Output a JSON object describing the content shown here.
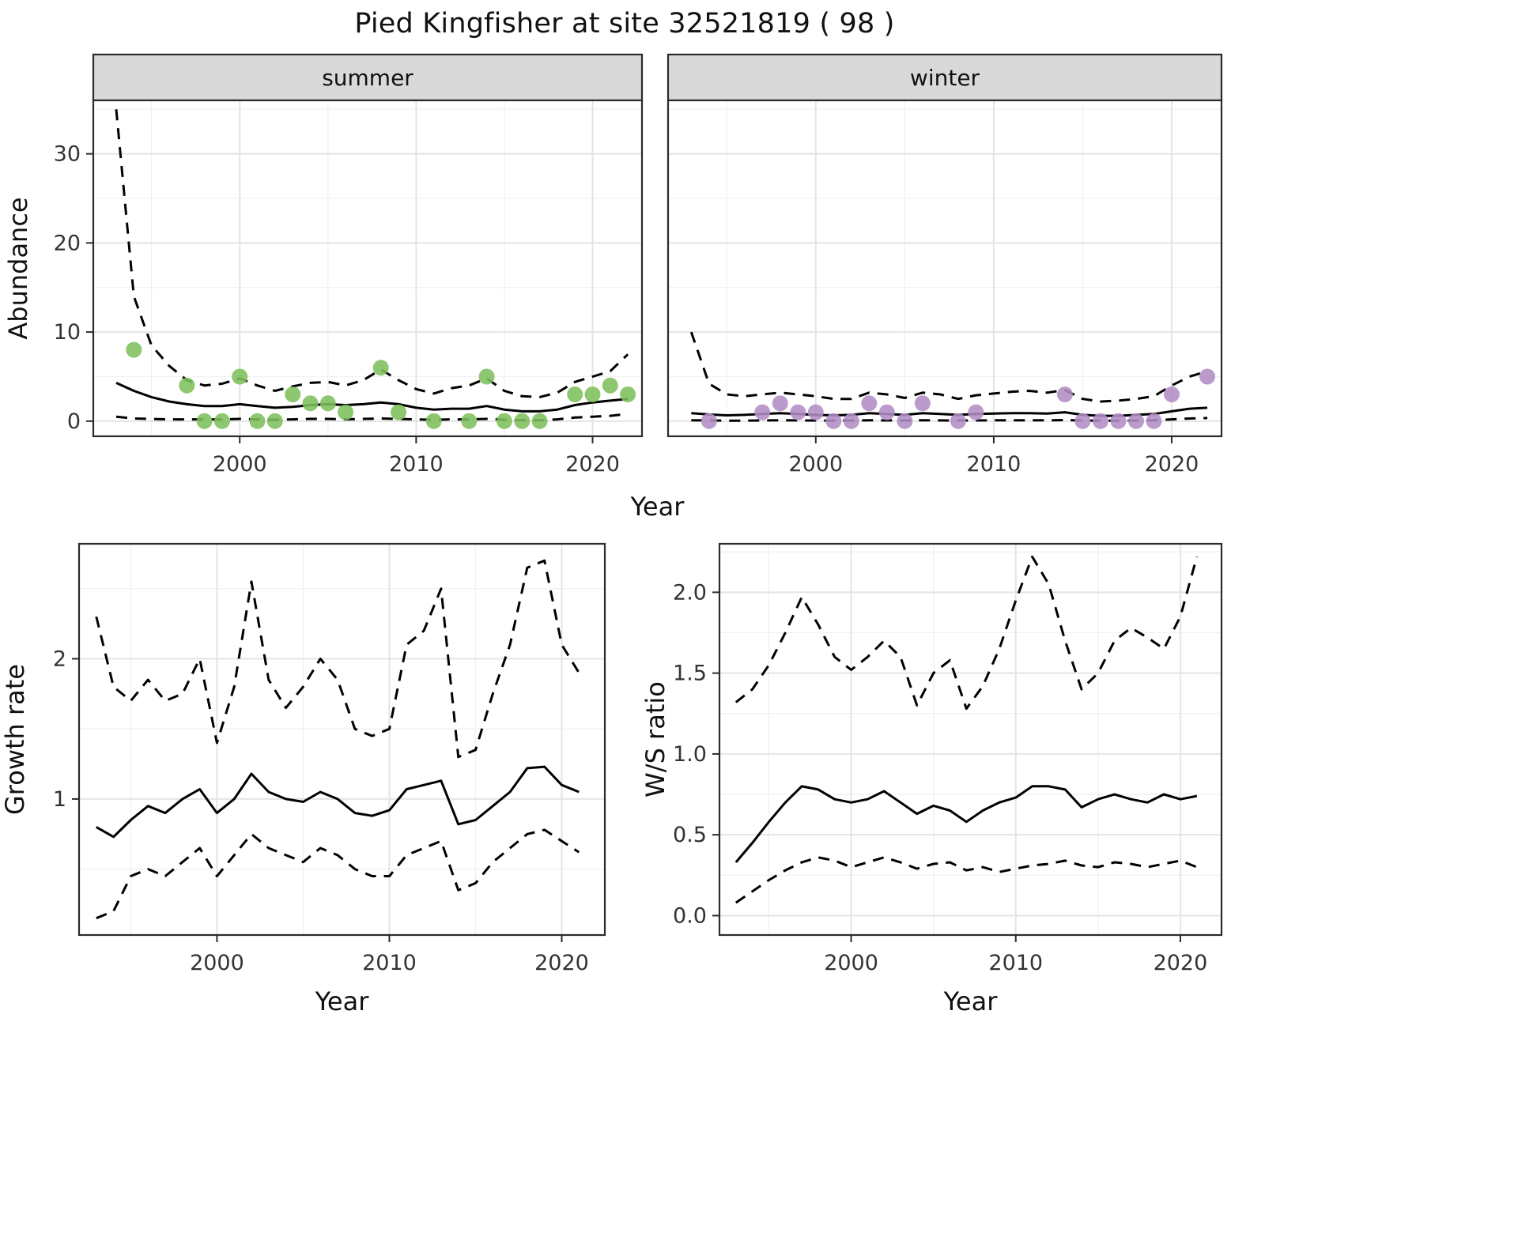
{
  "title": "Pied Kingfisher at site 32521819 ( 98 )",
  "theme": {
    "summer_point": "#7dbf5b",
    "winter_point": "#b28dc4",
    "line": "#000000",
    "strip_bg": "#d9d9d9",
    "panel_bg": "#ffffff",
    "grid_major": "#e4e4e4",
    "grid_minor": "#f1f1f1",
    "border": "#2b2b2b",
    "tick_text": "#333333",
    "title_text": "#111111"
  },
  "chart_data": [
    {
      "id": "abundance",
      "type": "line",
      "title": "",
      "xlabel": "Year",
      "ylabel": "Abundance",
      "xlim": [
        1991.7,
        2022.8
      ],
      "ylim": [
        -1.7,
        36
      ],
      "xticks": [
        2000,
        2010,
        2020
      ],
      "xtick_labels": [
        "2000",
        "2010",
        "2020"
      ],
      "xticks_minor": [
        1995,
        2005,
        2015
      ],
      "yticks": [
        0,
        10,
        20,
        30
      ],
      "ytick_labels": [
        "0",
        "10",
        "20",
        "30"
      ],
      "yticks_minor": [
        5,
        15,
        25,
        35
      ],
      "grid": true,
      "legend": "none",
      "x": [
        1993,
        1994,
        1995,
        1996,
        1997,
        1998,
        1999,
        2000,
        2001,
        2002,
        2003,
        2004,
        2005,
        2006,
        2007,
        2008,
        2009,
        2010,
        2011,
        2012,
        2013,
        2014,
        2015,
        2016,
        2017,
        2018,
        2019,
        2020,
        2021,
        2022
      ],
      "facets": [
        {
          "label": "summer",
          "color_key": "summer_point",
          "series": [
            {
              "name": "upper_ci",
              "style": "dashed",
              "values": [
                35,
                14,
                8.5,
                6.2,
                4.6,
                4.0,
                4.2,
                4.8,
                4.0,
                3.4,
                3.9,
                4.3,
                4.4,
                4.0,
                4.6,
                5.8,
                4.6,
                3.6,
                3.1,
                3.7,
                4.0,
                4.8,
                3.4,
                2.8,
                2.7,
                3.2,
                4.4,
                5.0,
                5.6,
                7.5
              ]
            },
            {
              "name": "fit",
              "style": "solid",
              "values": [
                4.3,
                3.4,
                2.7,
                2.2,
                1.9,
                1.7,
                1.7,
                1.9,
                1.7,
                1.5,
                1.6,
                1.8,
                1.9,
                1.8,
                1.9,
                2.1,
                1.9,
                1.5,
                1.3,
                1.4,
                1.4,
                1.7,
                1.3,
                1.1,
                1.1,
                1.3,
                1.8,
                2.1,
                2.3,
                2.5
              ]
            },
            {
              "name": "lower_ci",
              "style": "dashed",
              "values": [
                0.5,
                0.3,
                0.25,
                0.2,
                0.2,
                0.2,
                0.2,
                0.25,
                0.2,
                0.15,
                0.2,
                0.25,
                0.25,
                0.2,
                0.25,
                0.3,
                0.25,
                0.2,
                0.15,
                0.2,
                0.2,
                0.25,
                0.15,
                0.1,
                0.1,
                0.2,
                0.4,
                0.5,
                0.6,
                0.8
              ]
            }
          ],
          "points": {
            "name": "observed",
            "x": [
              1994,
              1997,
              1998,
              1999,
              2000,
              2001,
              2002,
              2003,
              2004,
              2005,
              2006,
              2008,
              2009,
              2011,
              2013,
              2014,
              2015,
              2016,
              2017,
              2019,
              2020,
              2021,
              2022
            ],
            "values": [
              8,
              4,
              0,
              0,
              5,
              0,
              0,
              3,
              2,
              2,
              1,
              6,
              1,
              0,
              0,
              5,
              0,
              0,
              0,
              3,
              3,
              4,
              3
            ]
          }
        },
        {
          "label": "winter",
          "color_key": "winter_point",
          "series": [
            {
              "name": "upper_ci",
              "style": "dashed",
              "values": [
                10,
                4.2,
                3.0,
                2.8,
                3.0,
                3.2,
                3.0,
                2.8,
                2.5,
                2.5,
                3.2,
                3.0,
                2.6,
                3.2,
                3.0,
                2.5,
                2.9,
                3.1,
                3.3,
                3.4,
                3.2,
                3.5,
                2.5,
                2.2,
                2.3,
                2.5,
                2.8,
                4.0,
                5.0,
                5.6
              ]
            },
            {
              "name": "fit",
              "style": "solid",
              "values": [
                0.9,
                0.75,
                0.65,
                0.7,
                0.8,
                0.9,
                0.8,
                0.7,
                0.65,
                0.7,
                0.9,
                0.8,
                0.7,
                0.9,
                0.8,
                0.7,
                0.8,
                0.85,
                0.9,
                0.9,
                0.85,
                1.0,
                0.7,
                0.6,
                0.6,
                0.7,
                0.8,
                1.1,
                1.4,
                1.5
              ]
            },
            {
              "name": "lower_ci",
              "style": "dashed",
              "values": [
                0.1,
                0.08,
                0.06,
                0.06,
                0.08,
                0.1,
                0.08,
                0.07,
                0.06,
                0.07,
                0.1,
                0.08,
                0.07,
                0.1,
                0.08,
                0.07,
                0.08,
                0.09,
                0.1,
                0.1,
                0.09,
                0.12,
                0.07,
                0.05,
                0.05,
                0.07,
                0.1,
                0.2,
                0.3,
                0.35
              ]
            }
          ],
          "points": {
            "name": "observed",
            "x": [
              1994,
              1997,
              1998,
              1999,
              2000,
              2001,
              2002,
              2003,
              2004,
              2005,
              2006,
              2008,
              2009,
              2014,
              2015,
              2016,
              2017,
              2018,
              2019,
              2020,
              2022
            ],
            "values": [
              0,
              1,
              2,
              1,
              1,
              0,
              0,
              2,
              1,
              0,
              2,
              0,
              1,
              3,
              0,
              0,
              0,
              0,
              0,
              3,
              5
            ]
          }
        }
      ]
    },
    {
      "id": "growth_rate",
      "type": "line",
      "title": "",
      "xlabel": "Year",
      "ylabel": "Growth rate",
      "xlim": [
        1992,
        2022.5
      ],
      "ylim": [
        0.03,
        2.82
      ],
      "xticks": [
        2000,
        2010,
        2020
      ],
      "xtick_labels": [
        "2000",
        "2010",
        "2020"
      ],
      "xticks_minor": [
        1995,
        2005,
        2015
      ],
      "yticks": [
        1,
        2
      ],
      "ytick_labels": [
        "1",
        "2"
      ],
      "yticks_minor": [
        0.5,
        1.5,
        2.5
      ],
      "grid": true,
      "legend": "none",
      "x": [
        1993,
        1994,
        1995,
        1996,
        1997,
        1998,
        1999,
        2000,
        2001,
        2002,
        2003,
        2004,
        2005,
        2006,
        2007,
        2008,
        2009,
        2010,
        2011,
        2012,
        2013,
        2014,
        2015,
        2016,
        2017,
        2018,
        2019,
        2020,
        2021
      ],
      "series": [
        {
          "name": "upper_ci",
          "style": "dashed",
          "values": [
            2.3,
            1.8,
            1.7,
            1.85,
            1.7,
            1.75,
            2.0,
            1.4,
            1.8,
            2.55,
            1.85,
            1.65,
            1.8,
            2.0,
            1.85,
            1.5,
            1.45,
            1.5,
            2.1,
            2.2,
            2.5,
            1.3,
            1.35,
            1.75,
            2.1,
            2.65,
            2.7,
            2.1,
            1.9
          ]
        },
        {
          "name": "fit",
          "style": "solid",
          "values": [
            0.8,
            0.73,
            0.85,
            0.95,
            0.9,
            1.0,
            1.07,
            0.9,
            1.0,
            1.18,
            1.05,
            1.0,
            0.98,
            1.05,
            1.0,
            0.9,
            0.88,
            0.92,
            1.07,
            1.1,
            1.13,
            0.82,
            0.85,
            0.95,
            1.05,
            1.22,
            1.23,
            1.1,
            1.05
          ]
        },
        {
          "name": "lower_ci",
          "style": "dashed",
          "values": [
            0.15,
            0.2,
            0.45,
            0.5,
            0.45,
            0.55,
            0.65,
            0.45,
            0.6,
            0.75,
            0.65,
            0.6,
            0.55,
            0.65,
            0.6,
            0.5,
            0.45,
            0.45,
            0.6,
            0.65,
            0.7,
            0.35,
            0.4,
            0.55,
            0.65,
            0.75,
            0.78,
            0.7,
            0.62
          ]
        }
      ]
    },
    {
      "id": "ws_ratio",
      "type": "line",
      "title": "",
      "xlabel": "Year",
      "ylabel": "W/S ratio",
      "xlim": [
        1992,
        2022.5
      ],
      "ylim": [
        -0.12,
        2.3
      ],
      "xticks": [
        2000,
        2010,
        2020
      ],
      "xtick_labels": [
        "2000",
        "2010",
        "2020"
      ],
      "xticks_minor": [
        1995,
        2005,
        2015
      ],
      "yticks": [
        0,
        0.5,
        1,
        1.5,
        2
      ],
      "ytick_labels": [
        "0.0",
        "0.5",
        "1.0",
        "1.5",
        "2.0"
      ],
      "yticks_minor": [
        0.25,
        0.75,
        1.25,
        1.75,
        2.25
      ],
      "grid": true,
      "legend": "none",
      "x": [
        1993,
        1994,
        1995,
        1996,
        1997,
        1998,
        1999,
        2000,
        2001,
        2002,
        2003,
        2004,
        2005,
        2006,
        2007,
        2008,
        2009,
        2010,
        2011,
        2012,
        2013,
        2014,
        2015,
        2016,
        2017,
        2018,
        2019,
        2020,
        2021
      ],
      "series": [
        {
          "name": "upper_ci",
          "style": "dashed",
          "values": [
            1.32,
            1.4,
            1.55,
            1.75,
            1.97,
            1.8,
            1.6,
            1.52,
            1.6,
            1.7,
            1.6,
            1.3,
            1.5,
            1.58,
            1.28,
            1.42,
            1.65,
            1.95,
            2.22,
            2.05,
            1.7,
            1.4,
            1.5,
            1.7,
            1.78,
            1.72,
            1.65,
            1.85,
            2.22
          ]
        },
        {
          "name": "fit",
          "style": "solid",
          "values": [
            0.33,
            0.45,
            0.58,
            0.7,
            0.8,
            0.78,
            0.72,
            0.7,
            0.72,
            0.77,
            0.7,
            0.63,
            0.68,
            0.65,
            0.58,
            0.65,
            0.7,
            0.73,
            0.8,
            0.8,
            0.78,
            0.67,
            0.72,
            0.75,
            0.72,
            0.7,
            0.75,
            0.72,
            0.74
          ]
        },
        {
          "name": "lower_ci",
          "style": "dashed",
          "values": [
            0.08,
            0.15,
            0.22,
            0.28,
            0.33,
            0.36,
            0.34,
            0.3,
            0.33,
            0.36,
            0.33,
            0.29,
            0.32,
            0.33,
            0.28,
            0.3,
            0.27,
            0.29,
            0.31,
            0.32,
            0.34,
            0.31,
            0.3,
            0.33,
            0.32,
            0.3,
            0.32,
            0.34,
            0.3
          ]
        }
      ]
    }
  ]
}
